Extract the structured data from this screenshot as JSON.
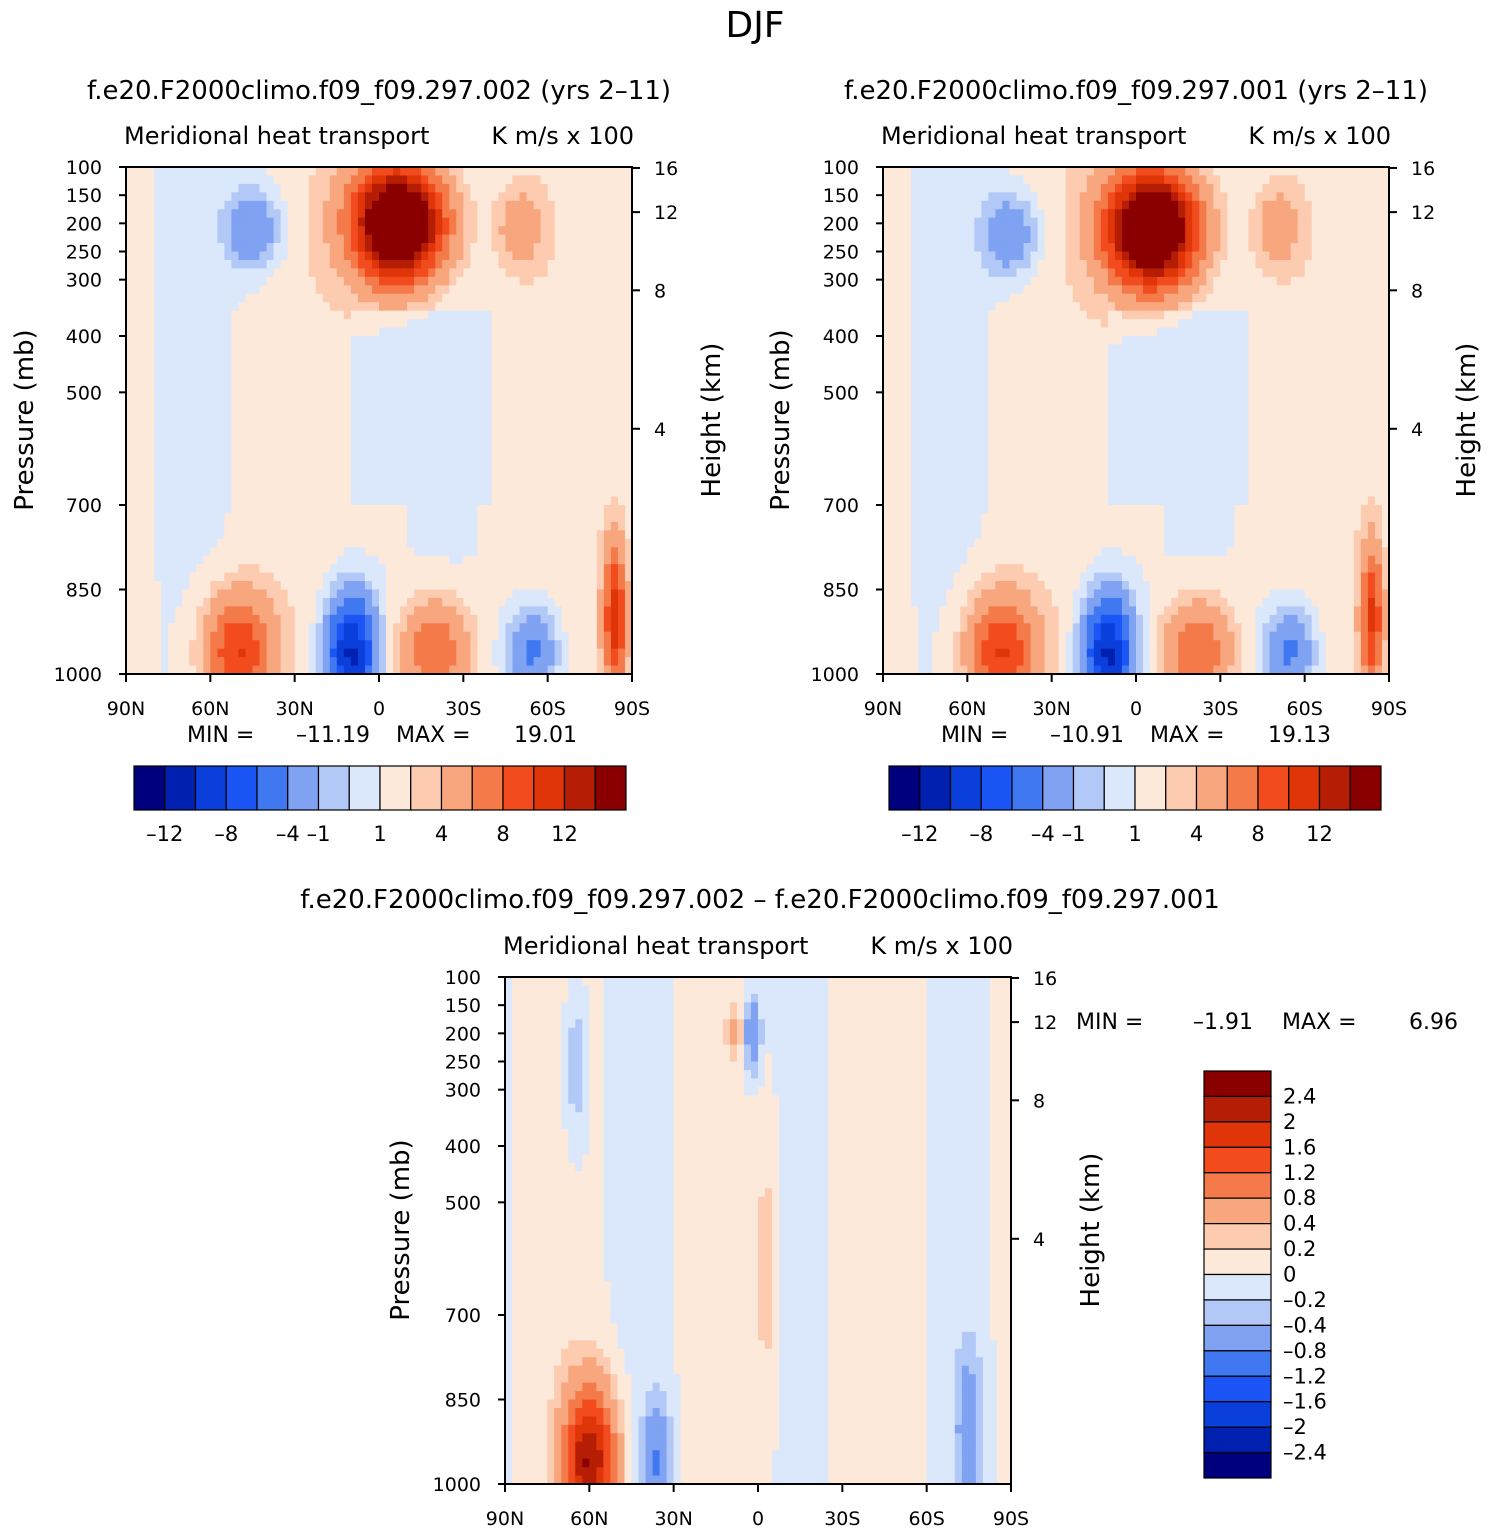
{
  "figure_title": "DJF",
  "colors": {
    "diverging_scale": [
      "#00007f",
      "#0020b0",
      "#0a3fdb",
      "#1c55f5",
      "#3f78f0",
      "#7fa2f2",
      "#b2c9f8",
      "#dbe8fb",
      "#fde9da",
      "#fccbb0",
      "#f8a67e",
      "#f57a4a",
      "#f24c1e",
      "#df3509",
      "#b51d05",
      "#8a0000"
    ]
  },
  "chart_data": [
    {
      "type": "heatmap",
      "subtitle": "f.e20.F2000climo.f09_f09.297.002 (yrs 2–11)",
      "title": "Meridional heat transport",
      "units": "K m/s x 100",
      "ylabel": "Pressure (mb)",
      "ylabel_right": "Height (km)",
      "x_ticks": [
        "90N",
        "60N",
        "30N",
        "0",
        "30S",
        "60S",
        "90S"
      ],
      "y_ticks": [
        "100",
        "150",
        "200",
        "250",
        "300",
        "400",
        "500",
        "700",
        "850",
        "1000"
      ],
      "y_ticks_right": [
        "16",
        "12",
        "8",
        "4"
      ],
      "min_label": "MIN =",
      "min": "–11.19",
      "max_label": "MAX =",
      "max": "19.01",
      "contour_levels": [
        -12,
        -10,
        -8,
        -6,
        -4,
        -2,
        -1,
        0,
        1,
        2,
        4,
        6,
        8,
        10,
        12
      ],
      "colorbar_labels": [
        "–12",
        "–8",
        "–4",
        "–1",
        "1",
        "4",
        "8",
        "12"
      ],
      "features": [
        {
          "lat": -7,
          "p": 200,
          "value": 19,
          "lat_half_width": 16,
          "p_half_extent": 100
        },
        {
          "lat": 10,
          "p": 965,
          "value": -11,
          "lat_half_width": 9,
          "p_half_extent": 110
        },
        {
          "lat": 50,
          "p": 960,
          "value": 8,
          "lat_half_width": 12,
          "p_half_extent": 100
        },
        {
          "lat": -20,
          "p": 960,
          "value": 6,
          "lat_half_width": 12,
          "p_half_extent": 90
        },
        {
          "lat": 45,
          "p": 210,
          "value": -4,
          "lat_half_width": 10,
          "p_half_extent": 70
        },
        {
          "lat": -55,
          "p": 960,
          "value": -5,
          "lat_half_width": 9,
          "p_half_extent": 80
        },
        {
          "lat": -50,
          "p": 210,
          "value": 3,
          "lat_half_width": 8,
          "p_half_extent": 70
        },
        {
          "lat": -84,
          "p": 900,
          "value": 9,
          "lat_half_width": 4,
          "p_half_extent": 130
        }
      ]
    },
    {
      "type": "heatmap",
      "subtitle": "f.e20.F2000climo.f09_f09.297.001 (yrs 2–11)",
      "title": "Meridional heat transport",
      "units": "K m/s x 100",
      "ylabel": "Pressure (mb)",
      "ylabel_right": "Height (km)",
      "x_ticks": [
        "90N",
        "60N",
        "30N",
        "0",
        "30S",
        "60S",
        "90S"
      ],
      "y_ticks": [
        "100",
        "150",
        "200",
        "250",
        "300",
        "400",
        "500",
        "700",
        "850",
        "1000"
      ],
      "y_ticks_right": [
        "16",
        "12",
        "8",
        "4"
      ],
      "min_label": "MIN =",
      "min": "–10.91",
      "max_label": "MAX =",
      "max": "19.13",
      "contour_levels": [
        -12,
        -10,
        -8,
        -6,
        -4,
        -2,
        -1,
        0,
        1,
        2,
        4,
        6,
        8,
        10,
        12
      ],
      "colorbar_labels": [
        "–12",
        "–8",
        "–4",
        "–1",
        "1",
        "4",
        "8",
        "12"
      ],
      "features": [
        {
          "lat": -6,
          "p": 210,
          "value": 19,
          "lat_half_width": 16,
          "p_half_extent": 100
        },
        {
          "lat": 10,
          "p": 965,
          "value": -11,
          "lat_half_width": 9,
          "p_half_extent": 110
        },
        {
          "lat": 48,
          "p": 960,
          "value": 8,
          "lat_half_width": 12,
          "p_half_extent": 100
        },
        {
          "lat": -22,
          "p": 960,
          "value": 6,
          "lat_half_width": 12,
          "p_half_extent": 90
        },
        {
          "lat": 45,
          "p": 220,
          "value": -4,
          "lat_half_width": 10,
          "p_half_extent": 70
        },
        {
          "lat": -55,
          "p": 960,
          "value": -5,
          "lat_half_width": 9,
          "p_half_extent": 80
        },
        {
          "lat": -50,
          "p": 210,
          "value": 3,
          "lat_half_width": 8,
          "p_half_extent": 70
        },
        {
          "lat": -84,
          "p": 900,
          "value": 8,
          "lat_half_width": 4,
          "p_half_extent": 130
        }
      ]
    },
    {
      "type": "heatmap",
      "subtitle": "f.e20.F2000climo.f09_f09.297.002 – f.e20.F2000climo.f09_f09.297.001",
      "title": "Meridional heat transport",
      "units": "K m/s x 100",
      "ylabel": "Pressure (mb)",
      "ylabel_right": "Height (km)",
      "x_ticks": [
        "90N",
        "60N",
        "30N",
        "0",
        "30S",
        "60S",
        "90S"
      ],
      "y_ticks": [
        "100",
        "150",
        "200",
        "250",
        "300",
        "400",
        "500",
        "700",
        "850",
        "1000"
      ],
      "y_ticks_right": [
        "16",
        "12",
        "8",
        "4"
      ],
      "min_label": "MIN =",
      "min": "–1.91",
      "max_label": "MAX =",
      "max": "6.96",
      "contour_levels": [
        -2.4,
        -2,
        -1.6,
        -1.2,
        -0.8,
        -0.4,
        -0.2,
        0,
        0.2,
        0.4,
        0.8,
        1.2,
        1.6,
        2,
        2.4
      ],
      "colorbar_labels": [
        "2.4",
        "2",
        "1.6",
        "1.2",
        "0.8",
        "0.4",
        "0.2",
        "0",
        "–0.2",
        "–0.4",
        "–0.8",
        "–1.2",
        "–1.6",
        "–2",
        "–2.4"
      ],
      "features": [
        {
          "lat": 60,
          "p": 960,
          "value": 2.4,
          "lat_half_width": 9,
          "p_half_extent": 130
        },
        {
          "lat": 36,
          "p": 960,
          "value": -0.8,
          "lat_half_width": 5,
          "p_half_extent": 110
        },
        {
          "lat": 65,
          "p": 260,
          "value": -0.4,
          "lat_half_width": 4,
          "p_half_extent": 150
        },
        {
          "lat": 2,
          "p": 200,
          "value": -0.8,
          "lat_half_width": 3,
          "p_half_extent": 70
        },
        {
          "lat": 8,
          "p": 200,
          "value": 0.4,
          "lat_half_width": 3,
          "p_half_extent": 50
        },
        {
          "lat": -3,
          "p": 620,
          "value": 0.3,
          "lat_half_width": 4,
          "p_half_extent": 250
        },
        {
          "lat": -75,
          "p": 900,
          "value": -0.6,
          "lat_half_width": 5,
          "p_half_extent": 150
        }
      ]
    }
  ]
}
